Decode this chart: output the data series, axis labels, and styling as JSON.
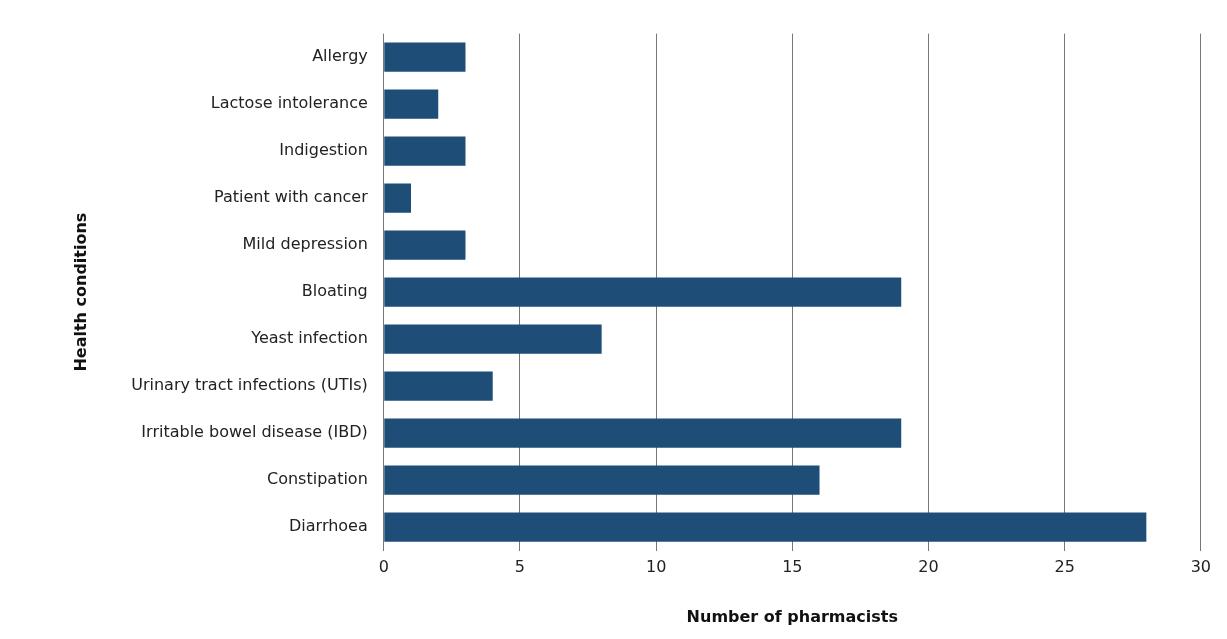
{
  "chart_data": {
    "type": "bar",
    "orientation": "horizontal",
    "xlabel": "Number of pharmacists",
    "ylabel": "Health conditions",
    "categories": [
      "Allergy",
      "Lactose intolerance",
      "Indigestion",
      "Patient with cancer",
      "Mild depression",
      "Bloating",
      "Yeast infection",
      "Urinary tract infections (UTIs)",
      "Irritable bowel disease (IBD)",
      "Constipation",
      "Diarrhoea"
    ],
    "values": [
      3,
      2,
      3,
      1,
      3,
      19,
      8,
      4,
      19,
      16,
      28
    ],
    "color": "#1e4e78",
    "xlim": [
      0,
      30
    ],
    "xticks": [
      0,
      5,
      10,
      15,
      20,
      25,
      30
    ],
    "grid": "x",
    "legend": false
  }
}
